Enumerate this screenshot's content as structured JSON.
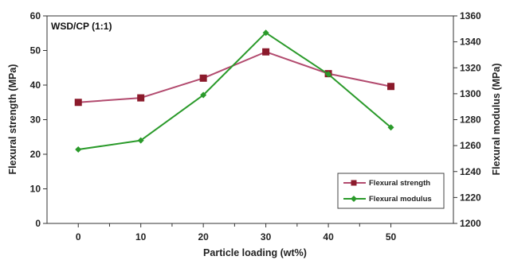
{
  "chart_data": {
    "type": "line",
    "annotation": "WSD/CP (1:1)",
    "xlabel": "Particle loading (wt%)",
    "ylabel": "Flexural strength (MPa)",
    "y2label": "Flexural modulus (MPa)",
    "x": [
      0,
      10,
      20,
      30,
      40,
      50
    ],
    "x_ticks": [
      "0",
      "10",
      "20",
      "30",
      "40",
      "50"
    ],
    "ylim": [
      0,
      60
    ],
    "y_ticks": [
      "0",
      "10",
      "20",
      "30",
      "40",
      "50",
      "60"
    ],
    "y2lim": [
      1200,
      1360
    ],
    "y2_ticks": [
      "1200",
      "1220",
      "1240",
      "1260",
      "1280",
      "1300",
      "1320",
      "1340",
      "1360"
    ],
    "grid": false,
    "legend_position": "bottom-right",
    "series": [
      {
        "name": "Flexural strength",
        "axis": "left",
        "color": "#b24a6e",
        "marker": "square",
        "marker_color": "#8b1a2b",
        "values": [
          35.0,
          36.3,
          42.0,
          49.6,
          43.3,
          39.6
        ]
      },
      {
        "name": "Flexural modulus",
        "axis": "right",
        "color": "#2a9a2a",
        "marker": "diamond",
        "marker_color": "#2a9a2a",
        "values": [
          1257,
          1264,
          1299,
          1347,
          1315,
          1274
        ]
      }
    ]
  }
}
